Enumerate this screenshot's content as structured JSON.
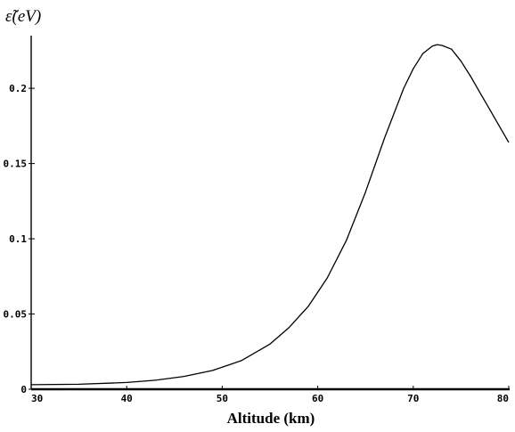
{
  "chart_data": {
    "type": "line",
    "title": "",
    "xlabel": "Altitude (km)",
    "ylabel": "ε̃(eV)",
    "xlim": [
      30,
      80
    ],
    "ylim": [
      0,
      0.235
    ],
    "x_ticks": [
      30,
      40,
      50,
      60,
      70,
      80
    ],
    "x_tick_labels": [
      "30",
      "40",
      "50",
      "60",
      "70",
      "80"
    ],
    "y_ticks": [
      0,
      0.05,
      0.1,
      0.15,
      0.2
    ],
    "y_tick_labels": [
      "0",
      "0.05",
      "0.1",
      "0.15",
      "0.2"
    ],
    "grid": false,
    "line_color": "#000000",
    "series": [
      {
        "x": [
          30,
          35,
          40,
          43,
          46,
          49,
          52,
          55,
          57,
          59,
          61,
          63,
          65,
          67,
          69,
          70,
          71,
          72,
          72.5,
          73,
          74,
          75,
          76,
          77,
          78,
          79,
          80
        ],
        "values": [
          0.003,
          0.0033,
          0.0045,
          0.006,
          0.0085,
          0.0125,
          0.019,
          0.03,
          0.041,
          0.055,
          0.074,
          0.099,
          0.131,
          0.167,
          0.2,
          0.213,
          0.223,
          0.228,
          0.229,
          0.2285,
          0.226,
          0.218,
          0.208,
          0.197,
          0.186,
          0.175,
          0.164
        ]
      }
    ]
  }
}
